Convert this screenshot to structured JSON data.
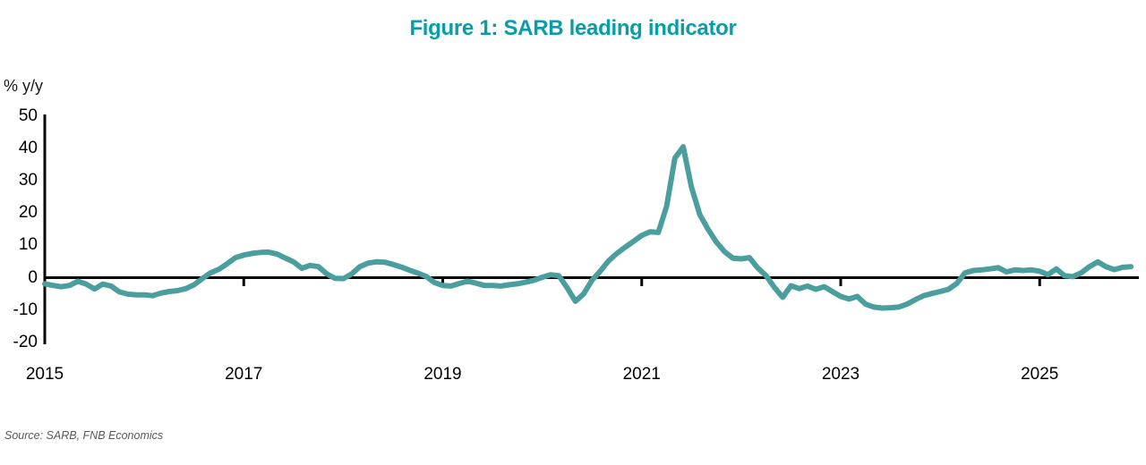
{
  "title": "Figure 1: SARB leading indicator",
  "y_axis_unit": "% y/y",
  "source": "Source: SARB, FNB Economics",
  "colors": {
    "title": "#089da9",
    "line": "#4a9e9e",
    "axis": "#000000",
    "source_text": "#595959"
  },
  "chart_data": {
    "type": "line",
    "title": "Figure 1: SARB leading indicator",
    "xlabel": "",
    "ylabel": "% y/y",
    "ylim": [
      -20,
      50
    ],
    "y_ticks": [
      50,
      40,
      30,
      20,
      10,
      0,
      -10,
      -20
    ],
    "x_ticks": [
      2015,
      2017,
      2019,
      2021,
      2023,
      2025
    ],
    "grid": false,
    "legend_position": "none",
    "frequency": "monthly",
    "start": {
      "year": 2015,
      "month": 1
    },
    "end": {
      "year": 2025,
      "month": 12
    },
    "series": [
      {
        "name": "SARB leading indicator (% y/y)",
        "values": [
          -1.9,
          -2.4,
          -2.8,
          -2.4,
          -1.1,
          -2.0,
          -3.5,
          -2.0,
          -2.6,
          -4.4,
          -5.1,
          -5.3,
          -5.3,
          -5.6,
          -4.8,
          -4.3,
          -4.0,
          -3.4,
          -2.2,
          -0.3,
          1.5,
          2.6,
          4.3,
          6.2,
          7.0,
          7.5,
          7.8,
          7.9,
          7.3,
          6.1,
          4.9,
          2.9,
          3.8,
          3.4,
          1.2,
          -0.2,
          -0.3,
          1.1,
          3.4,
          4.5,
          4.9,
          4.8,
          4.1,
          3.3,
          2.3,
          1.4,
          0.4,
          -1.5,
          -2.4,
          -2.6,
          -1.8,
          -1.1,
          -1.7,
          -2.4,
          -2.4,
          -2.6,
          -2.2,
          -1.9,
          -1.4,
          -0.8,
          0.1,
          0.9,
          0.6,
          -3.1,
          -7.3,
          -5.0,
          -0.8,
          2.0,
          5.2,
          7.5,
          9.4,
          11.2,
          13.1,
          14.2,
          14.0,
          22.0,
          37.0,
          40.5,
          28.0,
          19.5,
          15.0,
          11.0,
          8.0,
          6.0,
          5.8,
          6.2,
          3.0,
          0.6,
          -3.0,
          -6.1,
          -2.5,
          -3.4,
          -2.6,
          -3.6,
          -2.8,
          -4.3,
          -5.8,
          -6.6,
          -5.8,
          -8.2,
          -9.1,
          -9.4,
          -9.3,
          -9.1,
          -8.2,
          -6.8,
          -5.6,
          -4.9,
          -4.3,
          -3.6,
          -1.8,
          1.5,
          2.2,
          2.4,
          2.7,
          3.1,
          1.8,
          2.4,
          2.2,
          2.4,
          2.0,
          0.9,
          2.7,
          0.6,
          0.3,
          1.5,
          3.4,
          4.9,
          3.4,
          2.5,
          3.2,
          3.4
        ]
      }
    ]
  }
}
